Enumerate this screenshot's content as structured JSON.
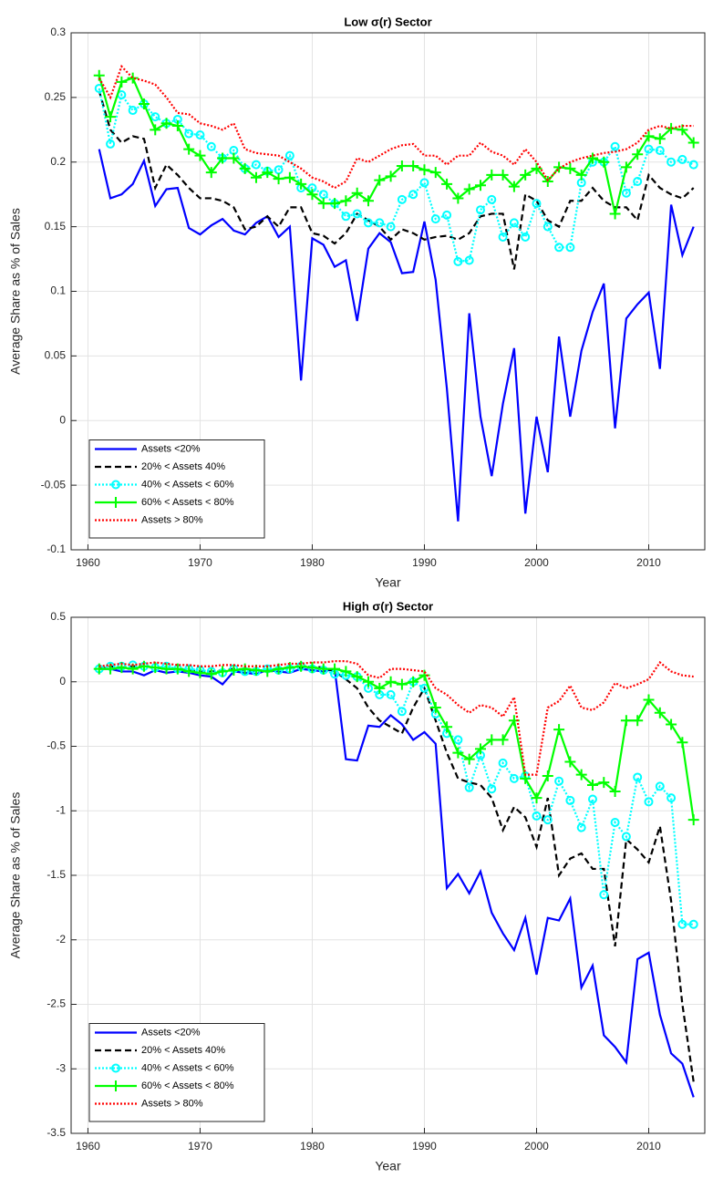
{
  "chart_data": [
    {
      "type": "line",
      "title": "Low σ(r) Sector",
      "xlabel": "Year",
      "ylabel": "Average Share as % of Sales",
      "x": [
        1961,
        1962,
        1963,
        1964,
        1965,
        1966,
        1967,
        1968,
        1969,
        1970,
        1971,
        1972,
        1973,
        1974,
        1975,
        1976,
        1977,
        1978,
        1979,
        1980,
        1981,
        1982,
        1983,
        1984,
        1985,
        1986,
        1987,
        1988,
        1989,
        1990,
        1991,
        1992,
        1993,
        1994,
        1995,
        1996,
        1997,
        1998,
        1999,
        2000,
        2001,
        2002,
        2003,
        2004,
        2005,
        2006,
        2007,
        2008,
        2009,
        2010,
        2011,
        2012,
        2013,
        2014
      ],
      "xlim": [
        1958.5,
        2015
      ],
      "xticks": [
        1960,
        1970,
        1980,
        1990,
        2000,
        2010
      ],
      "ylim": [
        -0.1,
        0.3
      ],
      "yticks": [
        -0.1,
        -0.05,
        0,
        0.05,
        0.1,
        0.15,
        0.2,
        0.25,
        0.3
      ],
      "grid": true,
      "legend": "lower left",
      "series": [
        {
          "name": "Assets <20%",
          "color": "#0000ff",
          "linestyle": "solid",
          "marker": "none",
          "values": [
            0.21,
            0.172,
            0.175,
            0.183,
            0.201,
            0.166,
            0.179,
            0.18,
            0.149,
            0.144,
            0.151,
            0.156,
            0.147,
            0.144,
            0.153,
            0.158,
            0.142,
            0.15,
            0.031,
            0.141,
            0.136,
            0.119,
            0.124,
            0.077,
            0.133,
            0.145,
            0.138,
            0.114,
            0.115,
            0.154,
            0.109,
            0.025,
            -0.078,
            0.083,
            0.003,
            -0.043,
            0.013,
            0.056,
            -0.072,
            0.003,
            -0.04,
            0.065,
            0.003,
            0.054,
            0.084,
            0.106,
            -0.006,
            0.079,
            0.09,
            0.099,
            0.04,
            0.167,
            0.128,
            0.15
          ]
        },
        {
          "name": "20% < Assets 40%",
          "color": "#000000",
          "linestyle": "dashed",
          "marker": "none",
          "values": [
            0.255,
            0.225,
            0.215,
            0.22,
            0.218,
            0.18,
            0.198,
            0.19,
            0.18,
            0.172,
            0.172,
            0.17,
            0.165,
            0.148,
            0.15,
            0.158,
            0.15,
            0.165,
            0.165,
            0.145,
            0.143,
            0.137,
            0.145,
            0.16,
            0.155,
            0.15,
            0.14,
            0.148,
            0.145,
            0.14,
            0.142,
            0.143,
            0.14,
            0.145,
            0.158,
            0.16,
            0.16,
            0.117,
            0.175,
            0.17,
            0.155,
            0.15,
            0.17,
            0.17,
            0.18,
            0.17,
            0.165,
            0.165,
            0.155,
            0.19,
            0.18,
            0.175,
            0.172,
            0.18
          ]
        },
        {
          "name": "40% < Assets < 60%",
          "color": "#00ffff",
          "linestyle": "dotted",
          "marker": "o",
          "values": [
            0.257,
            0.214,
            0.252,
            0.24,
            0.245,
            0.235,
            0.23,
            0.233,
            0.222,
            0.221,
            0.212,
            0.203,
            0.209,
            0.195,
            0.198,
            0.193,
            0.194,
            0.205,
            0.18,
            0.18,
            0.175,
            0.168,
            0.158,
            0.16,
            0.153,
            0.153,
            0.15,
            0.171,
            0.175,
            0.184,
            0.156,
            0.159,
            0.123,
            0.124,
            0.163,
            0.171,
            0.142,
            0.153,
            0.142,
            0.168,
            0.15,
            0.134,
            0.134,
            0.184,
            0.2,
            0.2,
            0.212,
            0.176,
            0.185,
            0.21,
            0.209,
            0.2,
            0.202,
            0.198
          ]
        },
        {
          "name": "60% < Assets < 80%",
          "color": "#00ff00",
          "linestyle": "solid",
          "marker": "+",
          "values": [
            0.267,
            0.235,
            0.262,
            0.265,
            0.245,
            0.225,
            0.23,
            0.228,
            0.21,
            0.205,
            0.192,
            0.203,
            0.203,
            0.195,
            0.188,
            0.192,
            0.187,
            0.188,
            0.183,
            0.175,
            0.168,
            0.168,
            0.17,
            0.176,
            0.17,
            0.186,
            0.189,
            0.197,
            0.197,
            0.194,
            0.192,
            0.183,
            0.172,
            0.179,
            0.182,
            0.19,
            0.19,
            0.181,
            0.19,
            0.195,
            0.185,
            0.196,
            0.195,
            0.19,
            0.203,
            0.2,
            0.16,
            0.196,
            0.206,
            0.22,
            0.218,
            0.226,
            0.225,
            0.215
          ]
        },
        {
          "name": "Assets > 80%",
          "color": "#ff0000",
          "linestyle": "dotted",
          "marker": "none",
          "values": [
            0.265,
            0.25,
            0.274,
            0.265,
            0.263,
            0.26,
            0.25,
            0.238,
            0.237,
            0.23,
            0.228,
            0.225,
            0.23,
            0.21,
            0.207,
            0.206,
            0.205,
            0.2,
            0.195,
            0.188,
            0.185,
            0.18,
            0.185,
            0.203,
            0.2,
            0.205,
            0.21,
            0.213,
            0.214,
            0.205,
            0.205,
            0.198,
            0.205,
            0.205,
            0.215,
            0.208,
            0.205,
            0.198,
            0.21,
            0.2,
            0.186,
            0.195,
            0.2,
            0.203,
            0.205,
            0.207,
            0.208,
            0.21,
            0.215,
            0.225,
            0.228,
            0.226,
            0.228,
            0.228
          ]
        }
      ]
    },
    {
      "type": "line",
      "title": "High σ(r) Sector",
      "xlabel": "Year",
      "ylabel": "Average Share as % of Sales",
      "x": [
        1961,
        1962,
        1963,
        1964,
        1965,
        1966,
        1967,
        1968,
        1969,
        1970,
        1971,
        1972,
        1973,
        1974,
        1975,
        1976,
        1977,
        1978,
        1979,
        1980,
        1981,
        1982,
        1983,
        1984,
        1985,
        1986,
        1987,
        1988,
        1989,
        1990,
        1991,
        1992,
        1993,
        1994,
        1995,
        1996,
        1997,
        1998,
        1999,
        2000,
        2001,
        2002,
        2003,
        2004,
        2005,
        2006,
        2007,
        2008,
        2009,
        2010,
        2011,
        2012,
        2013,
        2014
      ],
      "xlim": [
        1958.5,
        2015
      ],
      "xticks": [
        1960,
        1970,
        1980,
        1990,
        2000,
        2010
      ],
      "ylim": [
        -3.5,
        0.5
      ],
      "yticks": [
        -3.5,
        -3,
        -2.5,
        -2,
        -1.5,
        -1,
        -0.5,
        0,
        0.5
      ],
      "grid": true,
      "legend": "lower left",
      "series": [
        {
          "name": "Assets <20%",
          "color": "#0000ff",
          "linestyle": "solid",
          "marker": "none",
          "values": [
            0.1,
            0.1,
            0.08,
            0.08,
            0.05,
            0.09,
            0.07,
            0.08,
            0.07,
            0.05,
            0.04,
            -0.02,
            0.08,
            0.07,
            0.06,
            0.09,
            0.08,
            0.07,
            0.1,
            0.09,
            0.08,
            0.1,
            -0.6,
            -0.61,
            -0.34,
            -0.35,
            -0.26,
            -0.33,
            -0.45,
            -0.39,
            -0.48,
            -1.6,
            -1.49,
            -1.64,
            -1.47,
            -1.79,
            -1.95,
            -2.08,
            -1.83,
            -2.27,
            -1.83,
            -1.85,
            -1.68,
            -2.37,
            -2.2,
            -2.74,
            -2.83,
            -2.95,
            -2.15,
            -2.1,
            -2.58,
            -2.88,
            -2.96,
            -3.22
          ]
        },
        {
          "name": "20% < Assets 40%",
          "color": "#000000",
          "linestyle": "dashed",
          "marker": "none",
          "values": [
            0.1,
            0.12,
            0.11,
            0.12,
            0.12,
            0.11,
            0.1,
            0.1,
            0.09,
            0.08,
            0.08,
            0.09,
            0.1,
            0.09,
            0.08,
            0.09,
            0.1,
            0.11,
            0.11,
            0.12,
            0.11,
            0.08,
            0.02,
            -0.05,
            -0.2,
            -0.3,
            -0.35,
            -0.4,
            -0.2,
            -0.05,
            -0.3,
            -0.55,
            -0.75,
            -0.78,
            -0.8,
            -0.9,
            -1.15,
            -0.97,
            -1.05,
            -1.28,
            -0.9,
            -1.5,
            -1.37,
            -1.33,
            -1.45,
            -1.45,
            -2.05,
            -1.22,
            -1.3,
            -1.4,
            -1.12,
            -1.7,
            -2.5,
            -3.1
          ]
        },
        {
          "name": "40% < Assets < 60%",
          "color": "#00ffff",
          "linestyle": "dotted",
          "marker": "o",
          "values": [
            0.1,
            0.12,
            0.12,
            0.13,
            0.12,
            0.11,
            0.12,
            0.1,
            0.1,
            0.09,
            0.08,
            0.07,
            0.1,
            0.08,
            0.08,
            0.1,
            0.09,
            0.1,
            0.12,
            0.1,
            0.09,
            0.06,
            0.05,
            0.04,
            -0.05,
            -0.1,
            -0.1,
            -0.23,
            0.0,
            -0.05,
            -0.25,
            -0.4,
            -0.45,
            -0.82,
            -0.57,
            -0.83,
            -0.63,
            -0.75,
            -0.73,
            -1.04,
            -1.07,
            -0.77,
            -0.92,
            -1.13,
            -0.91,
            -1.65,
            -1.09,
            -1.2,
            -0.74,
            -0.93,
            -0.81,
            -0.9,
            -1.88,
            -1.88
          ]
        },
        {
          "name": "60% < Assets < 80%",
          "color": "#00ff00",
          "linestyle": "solid",
          "marker": "+",
          "values": [
            0.1,
            0.1,
            0.11,
            0.1,
            0.12,
            0.11,
            0.1,
            0.1,
            0.08,
            0.07,
            0.06,
            0.08,
            0.09,
            0.1,
            0.09,
            0.08,
            0.1,
            0.11,
            0.12,
            0.11,
            0.1,
            0.1,
            0.08,
            0.04,
            0.0,
            -0.05,
            0.0,
            -0.02,
            0.0,
            0.05,
            -0.2,
            -0.35,
            -0.55,
            -0.6,
            -0.52,
            -0.45,
            -0.45,
            -0.3,
            -0.75,
            -0.9,
            -0.73,
            -0.37,
            -0.62,
            -0.72,
            -0.8,
            -0.78,
            -0.85,
            -0.3,
            -0.3,
            -0.14,
            -0.24,
            -0.33,
            -0.47,
            -1.07
          ]
        },
        {
          "name": "Assets > 80%",
          "color": "#ff0000",
          "linestyle": "dotted",
          "marker": "none",
          "values": [
            0.12,
            0.13,
            0.14,
            0.13,
            0.14,
            0.15,
            0.14,
            0.13,
            0.13,
            0.12,
            0.12,
            0.13,
            0.13,
            0.12,
            0.12,
            0.12,
            0.13,
            0.14,
            0.14,
            0.15,
            0.15,
            0.16,
            0.16,
            0.14,
            0.05,
            0.03,
            0.1,
            0.1,
            0.09,
            0.08,
            -0.05,
            -0.1,
            -0.18,
            -0.24,
            -0.18,
            -0.2,
            -0.27,
            -0.12,
            -0.72,
            -0.72,
            -0.2,
            -0.15,
            -0.03,
            -0.2,
            -0.22,
            -0.16,
            -0.01,
            -0.05,
            -0.02,
            0.02,
            0.15,
            0.08,
            0.05,
            0.04
          ]
        }
      ]
    }
  ]
}
